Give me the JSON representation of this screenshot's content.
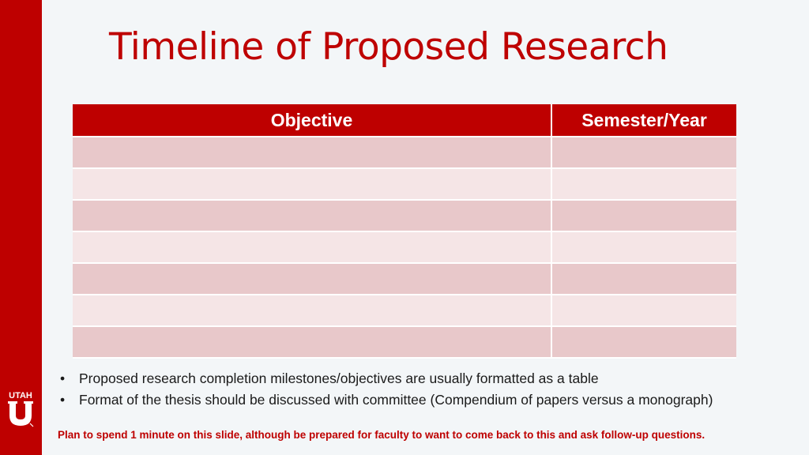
{
  "slide": {
    "title": "Timeline of Proposed Research",
    "logo_text": "UTAH",
    "logo_letter": "U"
  },
  "table": {
    "headers": [
      "Objective",
      "Semester/Year"
    ],
    "rows": [
      [
        "",
        ""
      ],
      [
        "",
        ""
      ],
      [
        "",
        ""
      ],
      [
        "",
        ""
      ],
      [
        "",
        ""
      ],
      [
        "",
        ""
      ],
      [
        "",
        ""
      ]
    ]
  },
  "bullets": [
    "Proposed research completion milestones/objectives are usually formatted as a table",
    "Format of the thesis should be discussed with committee (Compendium of papers versus a monograph)"
  ],
  "note": "Plan to spend 1 minute on this slide, although be prepared for faculty to want to come back to this and ask follow-up questions.",
  "colors": {
    "accent": "#be0000",
    "row_dark": "#e8c8ca",
    "row_light": "#f5e5e6",
    "background": "#f3f6f8"
  }
}
